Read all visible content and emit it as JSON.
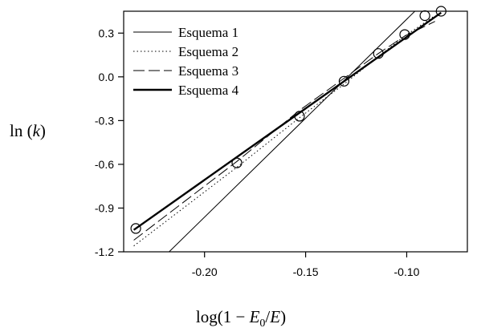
{
  "chart_data": {
    "type": "scatter",
    "xlabel": "log(1 − E₀/E)",
    "xlabel_parts": {
      "pre": "log(1 − ",
      "italic1": "E",
      "sub": "0",
      "mid": "/",
      "italic2": "E",
      "post": ")"
    },
    "ylabel": "ln (k)",
    "ylabel_parts": {
      "pre": "ln (",
      "italic": "k",
      "post": ")"
    },
    "xlim": [
      -0.24,
      -0.07
    ],
    "ylim": [
      -1.2,
      0.45
    ],
    "xticks": [
      -0.2,
      -0.15,
      -0.1
    ],
    "xtick_labels": [
      "-0.20",
      "-0.15",
      "-0.10"
    ],
    "yticks": [
      0.3,
      0.0,
      -0.3,
      -0.6,
      -0.9,
      -1.2
    ],
    "ytick_labels": [
      "0.3",
      "0.0",
      "-0.3",
      "-0.6",
      "-0.9",
      "-1.2"
    ],
    "legend_position": "top-left",
    "points": {
      "x": [
        -0.234,
        -0.184,
        -0.153,
        -0.131,
        -0.114,
        -0.101,
        -0.091,
        -0.083
      ],
      "y": [
        -1.04,
        -0.59,
        -0.27,
        -0.03,
        0.16,
        0.29,
        0.42,
        0.45
      ]
    },
    "series": [
      {
        "name": "Esquema 1",
        "style": "thin-solid",
        "x": [
          -0.2175,
          -0.093
        ],
        "y": [
          -1.2,
          0.49
        ]
      },
      {
        "name": "Esquema 2",
        "style": "dotted",
        "x": [
          -0.235,
          -0.184,
          -0.153,
          -0.131,
          -0.114,
          -0.101,
          -0.086
        ],
        "y": [
          -1.16,
          -0.62,
          -0.28,
          -0.05,
          0.14,
          0.28,
          0.42
        ]
      },
      {
        "name": "Esquema 3",
        "style": "dashed",
        "x": [
          -0.235,
          -0.184,
          -0.153,
          -0.131,
          -0.114,
          -0.101,
          -0.086
        ],
        "y": [
          -1.12,
          -0.58,
          -0.23,
          -0.01,
          0.16,
          0.28,
          0.38
        ]
      },
      {
        "name": "Esquema 4",
        "style": "thick-solid",
        "x": [
          -0.235,
          -0.083
        ],
        "y": [
          -1.05,
          0.44
        ]
      }
    ]
  }
}
